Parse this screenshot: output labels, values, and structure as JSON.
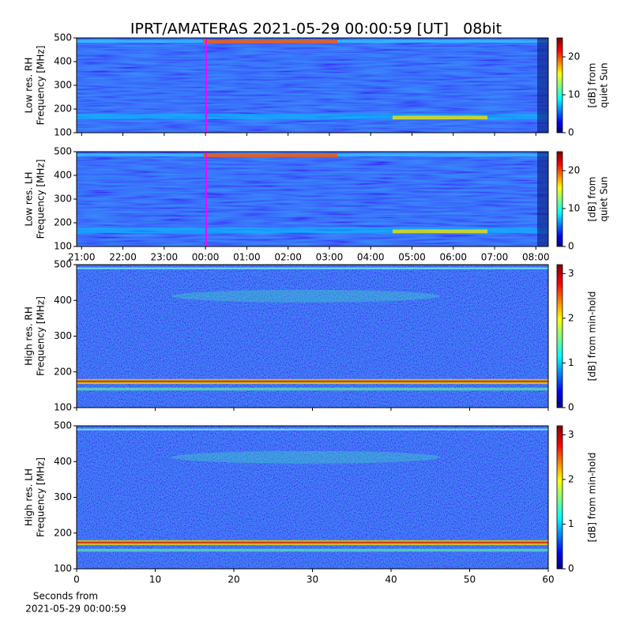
{
  "title": "IPRT/AMATERAS 2021-05-29 00:00:59 [UT]   08bit",
  "chart_data": [
    {
      "type": "heatmap",
      "ylabel": [
        "Low res. RH",
        "Frequency [MHz]"
      ],
      "ylim": [
        100,
        500
      ],
      "yticks": [
        100,
        200,
        300,
        400,
        500
      ],
      "xlim": [
        20.88,
        32.3
      ],
      "xticks": [
        {
          "value": 21,
          "label": "21:00"
        },
        {
          "value": 22,
          "label": "22:00"
        },
        {
          "value": 23,
          "label": "23:00"
        },
        {
          "value": 24,
          "label": "00:00"
        },
        {
          "value": 25,
          "label": "01:00"
        },
        {
          "value": 26,
          "label": "02:00"
        },
        {
          "value": 27,
          "label": "03:00"
        },
        {
          "value": 28,
          "label": "04:00"
        },
        {
          "value": 29,
          "label": "05:00"
        },
        {
          "value": 30,
          "label": "06:00"
        },
        {
          "value": 31,
          "label": "07:00"
        },
        {
          "value": 32,
          "label": "08:00"
        }
      ],
      "xtick_labels": false,
      "marker_x": 24.016,
      "marker_color": "#ff00ff",
      "clim": [
        0,
        25
      ],
      "cticks": [
        0,
        10,
        20
      ],
      "clabel": [
        "[dB] from",
        "quiet Sun"
      ]
    },
    {
      "type": "heatmap",
      "ylabel": [
        "Low res. LH",
        "Frequency [MHz]"
      ],
      "ylim": [
        100,
        500
      ],
      "yticks": [
        100,
        200,
        300,
        400,
        500
      ],
      "xlim": [
        20.88,
        32.3
      ],
      "xticks": [
        {
          "value": 21,
          "label": "21:00"
        },
        {
          "value": 22,
          "label": "22:00"
        },
        {
          "value": 23,
          "label": "23:00"
        },
        {
          "value": 24,
          "label": "00:00"
        },
        {
          "value": 25,
          "label": "01:00"
        },
        {
          "value": 26,
          "label": "02:00"
        },
        {
          "value": 27,
          "label": "03:00"
        },
        {
          "value": 28,
          "label": "04:00"
        },
        {
          "value": 29,
          "label": "05:00"
        },
        {
          "value": 30,
          "label": "06:00"
        },
        {
          "value": 31,
          "label": "07:00"
        },
        {
          "value": 32,
          "label": "08:00"
        }
      ],
      "xtick_labels": true,
      "marker_x": 24.016,
      "marker_color": "#ff00ff",
      "clim": [
        0,
        25
      ],
      "cticks": [
        0,
        10,
        20
      ],
      "clabel": [
        "[dB] from",
        "quiet Sun"
      ]
    },
    {
      "type": "heatmap",
      "ylabel": [
        "High res. RH",
        "Frequency [MHz]"
      ],
      "ylim": [
        100,
        500
      ],
      "yticks": [
        100,
        200,
        300,
        400,
        500
      ],
      "xlim": [
        0,
        60
      ],
      "xticks": [
        0,
        10,
        20,
        30,
        40,
        50,
        60
      ],
      "xtick_labels": false,
      "clim": [
        0,
        3.2
      ],
      "cticks": [
        0,
        1,
        2,
        3
      ],
      "clabel": [
        "[dB] from min-hold"
      ]
    },
    {
      "type": "heatmap",
      "ylabel": [
        "High res. LH",
        "Frequency [MHz]"
      ],
      "ylim": [
        100,
        500
      ],
      "yticks": [
        100,
        200,
        300,
        400,
        500
      ],
      "xlim": [
        0,
        60
      ],
      "xticks": [
        0,
        10,
        20,
        30,
        40,
        50,
        60
      ],
      "xtick_labels": true,
      "xlabel": [
        "Seconds from",
        "2021-05-29 00:00:59"
      ],
      "clim": [
        0,
        3.2
      ],
      "cticks": [
        0,
        1,
        2,
        3
      ],
      "clabel": [
        "[dB] from min-hold"
      ]
    }
  ]
}
